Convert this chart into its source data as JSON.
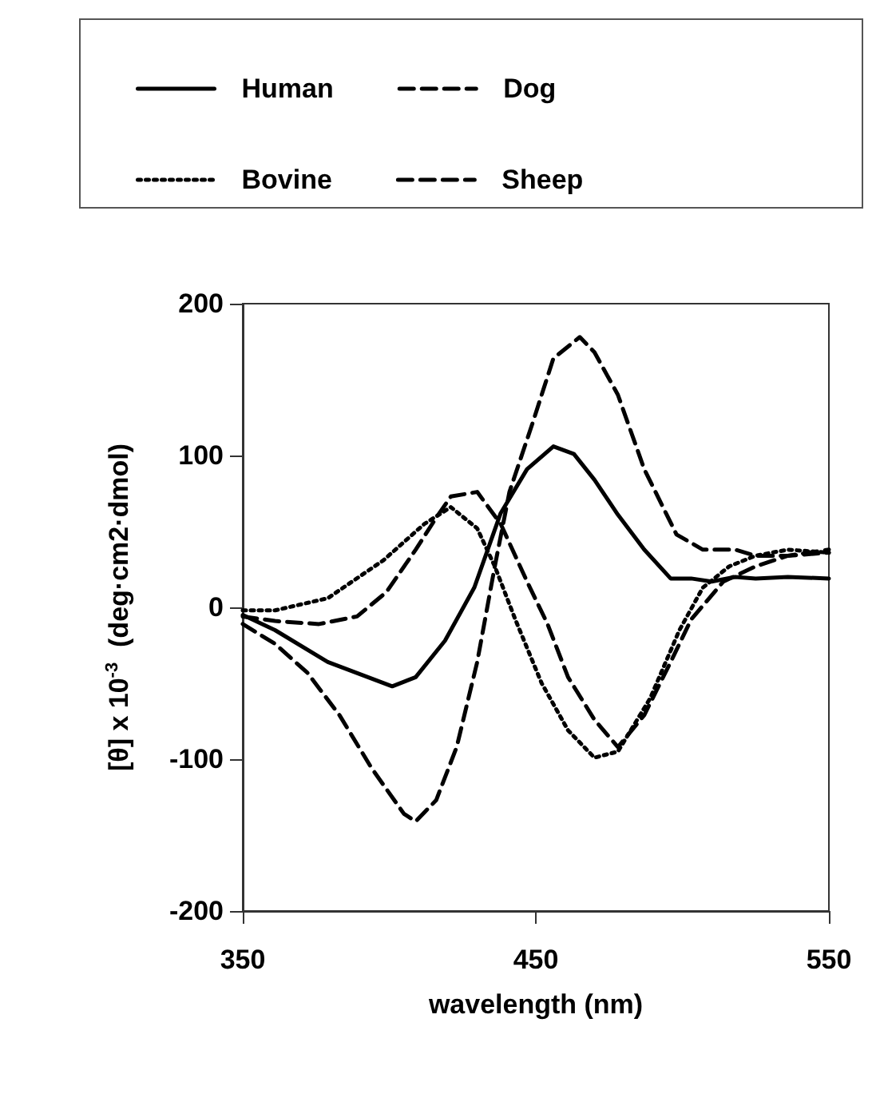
{
  "chart_data": {
    "type": "line",
    "xlabel": "wavelength (nm)",
    "ylabel": "[θ] x 10$^{-3}$  (deg·cm2·dmol)",
    "xlim": [
      350,
      550
    ],
    "xticks": [
      350,
      450,
      550
    ],
    "ylim": [
      -200,
      200
    ],
    "yticks": [
      -200,
      -100,
      0,
      100,
      200
    ],
    "grid": false,
    "legend": "top",
    "marker": "none",
    "series": [
      {
        "name": "Human",
        "color": "#000000",
        "line_style": "solid",
        "x": [
          350,
          361,
          379,
          401,
          409,
          419,
          429,
          438,
          447,
          456,
          463,
          470,
          478,
          487,
          496,
          503,
          510,
          518,
          525,
          536,
          550
        ],
        "values": [
          -5,
          -15,
          -36,
          -52,
          -46,
          -22,
          13,
          62,
          91,
          106,
          101,
          84,
          61,
          38,
          19,
          19,
          17,
          20,
          19,
          20,
          19
        ]
      },
      {
        "name": "Dog",
        "color": "#000000",
        "line_style": "dashed",
        "x": [
          350,
          361,
          372,
          383,
          394,
          405,
          409,
          416,
          423,
          430,
          436,
          441,
          449,
          456,
          465,
          470,
          478,
          487,
          498,
          507,
          518,
          525,
          536,
          550
        ],
        "values": [
          -11,
          -24,
          -43,
          -71,
          -106,
          -136,
          -141,
          -127,
          -92,
          -36,
          27,
          76,
          122,
          164,
          178,
          168,
          140,
          91,
          48,
          38,
          38,
          34,
          34,
          38
        ]
      },
      {
        "name": "Bovine",
        "color": "#000000",
        "line_style": "dotted",
        "x": [
          350,
          361,
          379,
          398,
          412,
          421,
          430,
          436,
          443,
          452,
          461,
          470,
          478,
          489,
          499,
          507,
          516,
          525,
          536,
          550
        ],
        "values": [
          -2,
          -2,
          6,
          31,
          55,
          66,
          52,
          27,
          -8,
          -50,
          -81,
          -99,
          -95,
          -60,
          -15,
          13,
          27,
          34,
          38,
          36
        ]
      },
      {
        "name": "Sheep",
        "color": "#000000",
        "line_style": "dashed",
        "x": [
          350,
          361,
          376,
          389,
          399,
          409,
          416,
          421,
          430,
          438,
          447,
          454,
          461,
          470,
          478,
          487,
          496,
          503,
          514,
          525,
          536,
          550
        ],
        "values": [
          -6,
          -9,
          -11,
          -6,
          10,
          38,
          59,
          73,
          76,
          55,
          17,
          -11,
          -46,
          -74,
          -92,
          -71,
          -36,
          -8,
          17,
          27,
          34,
          36
        ]
      }
    ]
  }
}
